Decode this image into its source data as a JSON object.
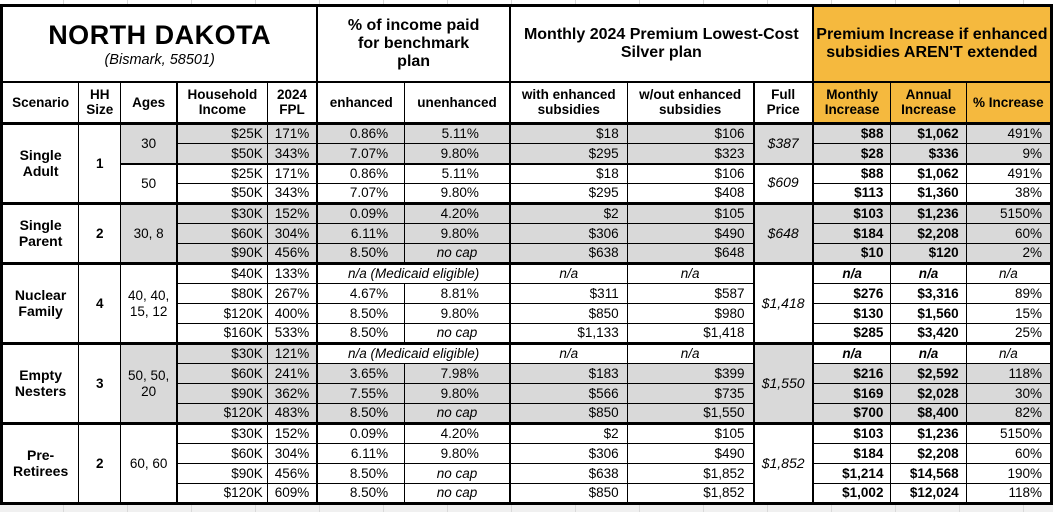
{
  "title": "NORTH DAKOTA",
  "subtitle": "(Bismark, 58501)",
  "section_headers": {
    "benchmark": "% of income paid for benchmark plan",
    "premium": "Monthly 2024 Premium Lowest-Cost Silver plan",
    "increase": "Premium Increase if enhanced subsidies AREN'T extended"
  },
  "columns": {
    "scenario": "Scenario",
    "hh_size": "HH Size",
    "ages": "Ages",
    "income": "Household Income",
    "fpl": "2024 FPL",
    "enhanced": "enhanced",
    "unenhanced": "unenhanced",
    "with_sub": "with enhanced subsidies",
    "wout_sub": "w/out enhanced subsidies",
    "full_price": "Full Price",
    "monthly": "Monthly Increase",
    "annual": "Annual Increase",
    "pct": "% Increase"
  },
  "colors": {
    "highlight": "#f5b93e",
    "shaded": "#d9d9d9"
  },
  "groups": [
    {
      "scenario": "Single Adult",
      "hh_size": "1",
      "age_groups": [
        {
          "ages": "30",
          "shaded": true,
          "full_price": "$387",
          "rows": [
            {
              "income": "$25K",
              "fpl": "171%",
              "enhanced": "0.86%",
              "unenhanced": "5.11%",
              "with_sub": "$18",
              "wout_sub": "$106",
              "monthly": "$88",
              "annual": "$1,062",
              "pct": "491%"
            },
            {
              "income": "$50K",
              "fpl": "343%",
              "enhanced": "7.07%",
              "unenhanced": "9.80%",
              "with_sub": "$295",
              "wout_sub": "$323",
              "monthly": "$28",
              "annual": "$336",
              "pct": "9%"
            }
          ]
        },
        {
          "ages": "50",
          "shaded": false,
          "full_price": "$609",
          "rows": [
            {
              "income": "$25K",
              "fpl": "171%",
              "enhanced": "0.86%",
              "unenhanced": "5.11%",
              "with_sub": "$18",
              "wout_sub": "$106",
              "monthly": "$88",
              "annual": "$1,062",
              "pct": "491%"
            },
            {
              "income": "$50K",
              "fpl": "343%",
              "enhanced": "7.07%",
              "unenhanced": "9.80%",
              "with_sub": "$295",
              "wout_sub": "$408",
              "monthly": "$113",
              "annual": "$1,360",
              "pct": "38%"
            }
          ]
        }
      ]
    },
    {
      "scenario": "Single Parent",
      "hh_size": "2",
      "age_groups": [
        {
          "ages": "30, 8",
          "shaded": true,
          "full_price": "$648",
          "rows": [
            {
              "income": "$30K",
              "fpl": "152%",
              "enhanced": "0.09%",
              "unenhanced": "4.20%",
              "with_sub": "$2",
              "wout_sub": "$105",
              "monthly": "$103",
              "annual": "$1,236",
              "pct": "5150%"
            },
            {
              "income": "$60K",
              "fpl": "304%",
              "enhanced": "6.11%",
              "unenhanced": "9.80%",
              "with_sub": "$306",
              "wout_sub": "$490",
              "monthly": "$184",
              "annual": "$2,208",
              "pct": "60%"
            },
            {
              "income": "$90K",
              "fpl": "456%",
              "enhanced": "8.50%",
              "unenhanced": "no cap",
              "with_sub": "$638",
              "wout_sub": "$648",
              "monthly": "$10",
              "annual": "$120",
              "pct": "2%"
            }
          ]
        }
      ]
    },
    {
      "scenario": "Nuclear Family",
      "hh_size": "4",
      "age_groups": [
        {
          "ages": "40, 40, 15, 12",
          "shaded": false,
          "full_price": "$1,418",
          "rows": [
            {
              "medicaid": true,
              "income": "$40K",
              "fpl": "133%",
              "enhanced": "n/a (Medicaid eligible)",
              "unenhanced": "",
              "with_sub": "n/a",
              "wout_sub": "n/a",
              "monthly": "n/a",
              "annual": "n/a",
              "pct": "n/a"
            },
            {
              "income": "$80K",
              "fpl": "267%",
              "enhanced": "4.67%",
              "unenhanced": "8.81%",
              "with_sub": "$311",
              "wout_sub": "$587",
              "monthly": "$276",
              "annual": "$3,316",
              "pct": "89%"
            },
            {
              "income": "$120K",
              "fpl": "400%",
              "enhanced": "8.50%",
              "unenhanced": "9.80%",
              "with_sub": "$850",
              "wout_sub": "$980",
              "monthly": "$130",
              "annual": "$1,560",
              "pct": "15%"
            },
            {
              "income": "$160K",
              "fpl": "533%",
              "enhanced": "8.50%",
              "unenhanced": "no cap",
              "with_sub": "$1,133",
              "wout_sub": "$1,418",
              "monthly": "$285",
              "annual": "$3,420",
              "pct": "25%"
            }
          ]
        }
      ]
    },
    {
      "scenario": "Empty Nesters",
      "hh_size": "3",
      "age_groups": [
        {
          "ages": "50, 50, 20",
          "shaded": true,
          "full_price": "$1,550",
          "rows": [
            {
              "medicaid": true,
              "income": "$30K",
              "fpl": "121%",
              "enhanced": "n/a (Medicaid eligible)",
              "unenhanced": "",
              "with_sub": "n/a",
              "wout_sub": "n/a",
              "monthly": "n/a",
              "annual": "n/a",
              "pct": "n/a"
            },
            {
              "income": "$60K",
              "fpl": "241%",
              "enhanced": "3.65%",
              "unenhanced": "7.98%",
              "with_sub": "$183",
              "wout_sub": "$399",
              "monthly": "$216",
              "annual": "$2,592",
              "pct": "118%"
            },
            {
              "income": "$90K",
              "fpl": "362%",
              "enhanced": "7.55%",
              "unenhanced": "9.80%",
              "with_sub": "$566",
              "wout_sub": "$735",
              "monthly": "$169",
              "annual": "$2,028",
              "pct": "30%"
            },
            {
              "income": "$120K",
              "fpl": "483%",
              "enhanced": "8.50%",
              "unenhanced": "no cap",
              "with_sub": "$850",
              "wout_sub": "$1,550",
              "monthly": "$700",
              "annual": "$8,400",
              "pct": "82%"
            }
          ]
        }
      ]
    },
    {
      "scenario": "Pre-Retirees",
      "hh_size": "2",
      "age_groups": [
        {
          "ages": "60, 60",
          "shaded": false,
          "full_price": "$1,852",
          "rows": [
            {
              "income": "$30K",
              "fpl": "152%",
              "enhanced": "0.09%",
              "unenhanced": "4.20%",
              "with_sub": "$2",
              "wout_sub": "$105",
              "monthly": "$103",
              "annual": "$1,236",
              "pct": "5150%"
            },
            {
              "income": "$60K",
              "fpl": "304%",
              "enhanced": "6.11%",
              "unenhanced": "9.80%",
              "with_sub": "$306",
              "wout_sub": "$490",
              "monthly": "$184",
              "annual": "$2,208",
              "pct": "60%"
            },
            {
              "income": "$90K",
              "fpl": "456%",
              "enhanced": "8.50%",
              "unenhanced": "no cap",
              "with_sub": "$638",
              "wout_sub": "$1,852",
              "monthly": "$1,214",
              "annual": "$14,568",
              "pct": "190%"
            },
            {
              "income": "$120K",
              "fpl": "609%",
              "enhanced": "8.50%",
              "unenhanced": "no cap",
              "with_sub": "$850",
              "wout_sub": "$1,852",
              "monthly": "$1,002",
              "annual": "$12,024",
              "pct": "118%"
            }
          ]
        }
      ]
    }
  ]
}
